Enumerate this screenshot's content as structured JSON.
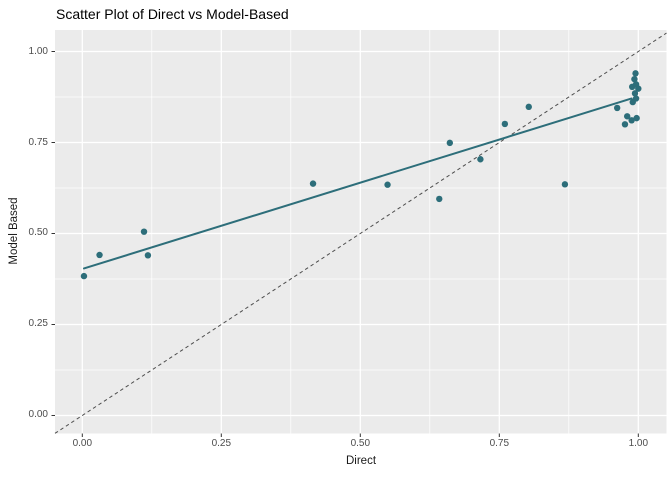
{
  "chart_data": {
    "type": "scatter",
    "title": "Scatter Plot of Direct vs Model-Based",
    "xlabel": "Direct",
    "ylabel": "Model Based",
    "xlim": [
      -0.0491,
      1.0507
    ],
    "ylim": [
      -0.0495,
      1.0591
    ],
    "x_ticks": [
      0,
      0.25,
      0.5,
      0.75,
      1
    ],
    "x_tick_labels": [
      "0.00",
      "0.25",
      "0.50",
      "0.75",
      "1.00"
    ],
    "y_ticks": [
      0,
      0.25,
      0.5,
      0.75,
      1
    ],
    "y_tick_labels": [
      "0.00",
      "0.25",
      "0.50",
      "0.75",
      "1.00"
    ],
    "minor_ticks": [
      0.125,
      0.375,
      0.625,
      0.875
    ],
    "grid": "white major+minor gridlines on gray panel",
    "legend": "none",
    "panel_bg": "#EBEBEB",
    "point_color": "#2D6E7A",
    "point_radius": 3.2,
    "points": [
      [
        0.003,
        0.383
      ],
      [
        0.031,
        0.441
      ],
      [
        0.111,
        0.505
      ],
      [
        0.118,
        0.44
      ],
      [
        0.415,
        0.637
      ],
      [
        0.549,
        0.634
      ],
      [
        0.642,
        0.595
      ],
      [
        0.661,
        0.749
      ],
      [
        0.716,
        0.704
      ],
      [
        0.76,
        0.801
      ],
      [
        0.803,
        0.848
      ],
      [
        0.868,
        0.635
      ],
      [
        0.962,
        0.845
      ],
      [
        0.976,
        0.8
      ],
      [
        0.98,
        0.822
      ],
      [
        0.988,
        0.811
      ],
      [
        0.997,
        0.817
      ],
      [
        0.995,
        0.94
      ],
      [
        0.993,
        0.924
      ],
      [
        0.996,
        0.91
      ],
      [
        0.989,
        0.903
      ],
      [
        1.0,
        0.898
      ],
      [
        0.994,
        0.885
      ],
      [
        0.996,
        0.871
      ],
      [
        0.99,
        0.861
      ]
    ],
    "trend_line": {
      "x1": 0.003,
      "y1": 0.404,
      "x2": 0.988,
      "y2": 0.871,
      "color": "#2D6E7A",
      "width": 2
    },
    "identity_line": {
      "from": [
        -0.0491,
        -0.0491
      ],
      "to": [
        1.0507,
        1.0507
      ],
      "color": "#4D4D4D",
      "style": "dashed"
    }
  }
}
